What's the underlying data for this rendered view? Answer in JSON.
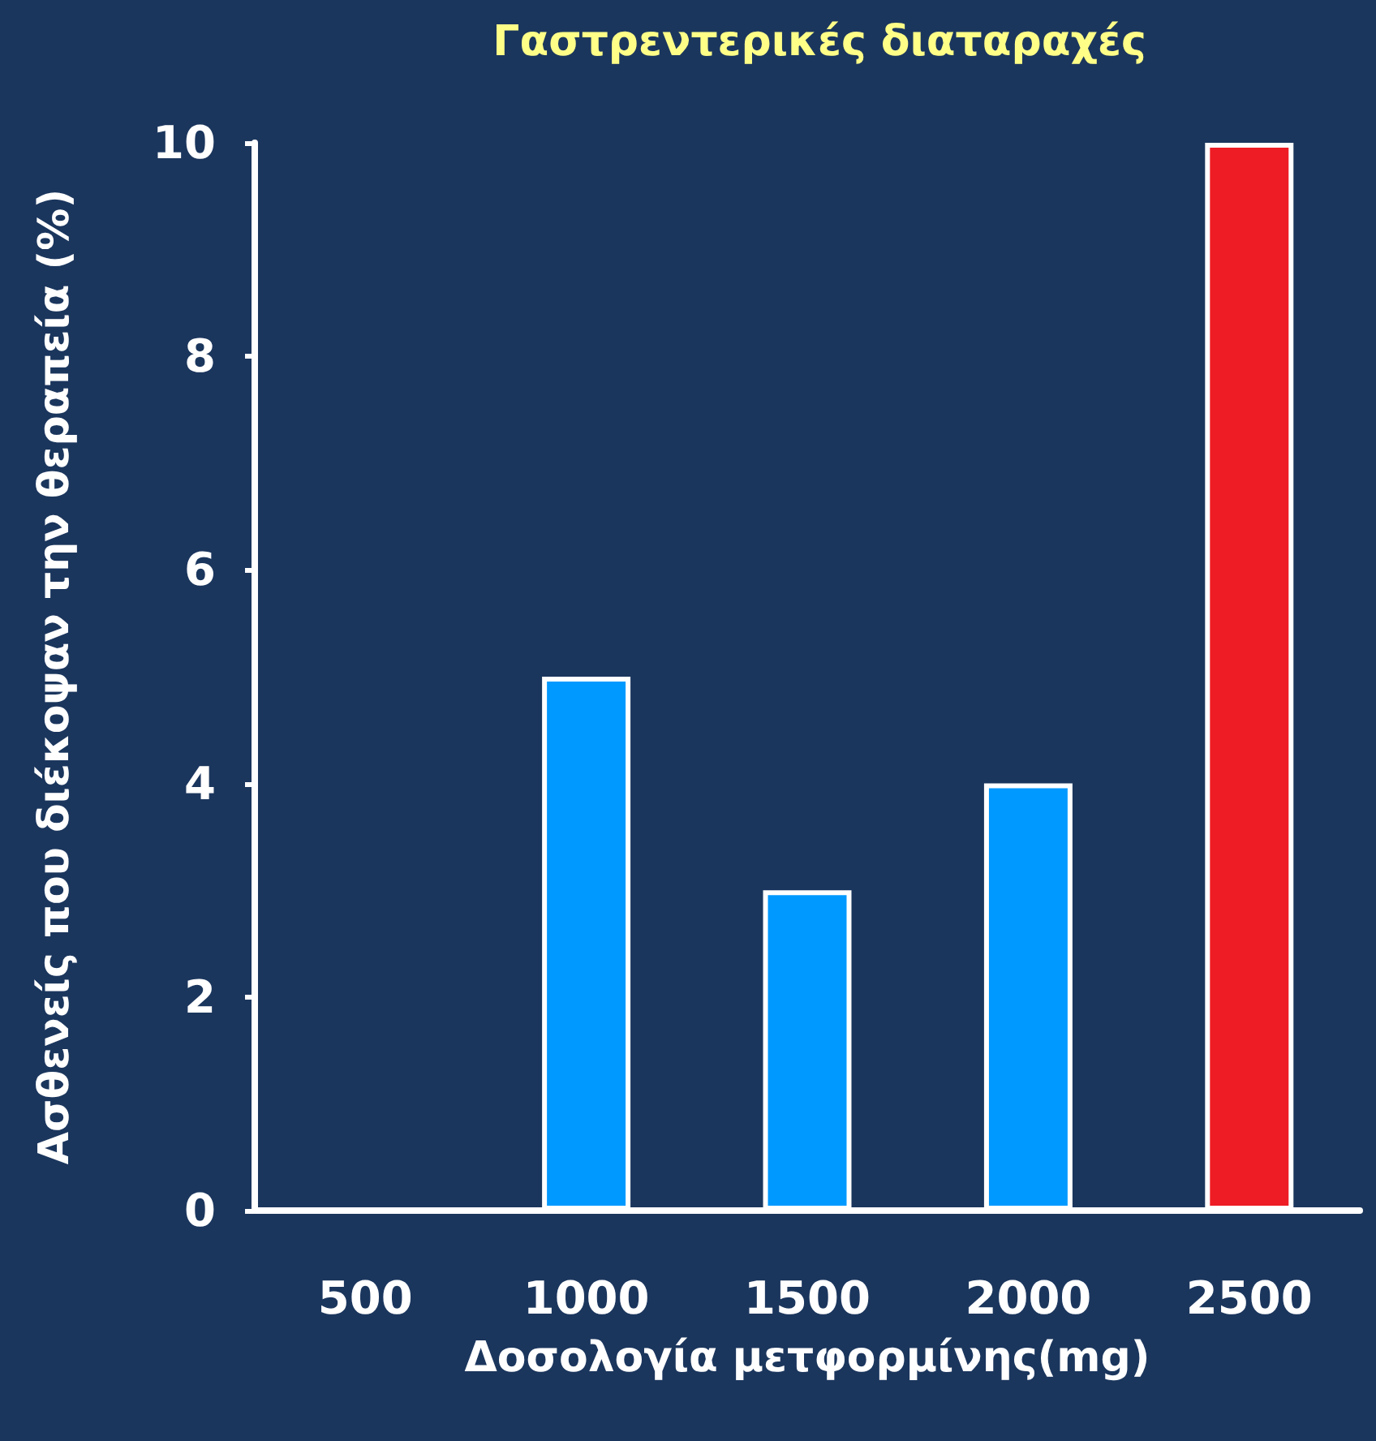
{
  "chart_data": {
    "type": "bar",
    "title": "Γαστρεντερικές διαταραχές",
    "xlabel": "Δοσολογία μετφορμίνης(mg)",
    "ylabel": "Ασθενείς που διέκοψαν την θεραπεία (%)",
    "categories": [
      "500",
      "1000",
      "1500",
      "2000",
      "2500"
    ],
    "values": [
      0,
      5,
      3,
      4,
      10
    ],
    "colors": [
      "#0099ff",
      "#0099ff",
      "#0099ff",
      "#0099ff",
      "#ee1c24"
    ],
    "ylim": [
      0,
      10
    ],
    "yticks": [
      0,
      2,
      4,
      6,
      8,
      10
    ],
    "grid": false
  }
}
